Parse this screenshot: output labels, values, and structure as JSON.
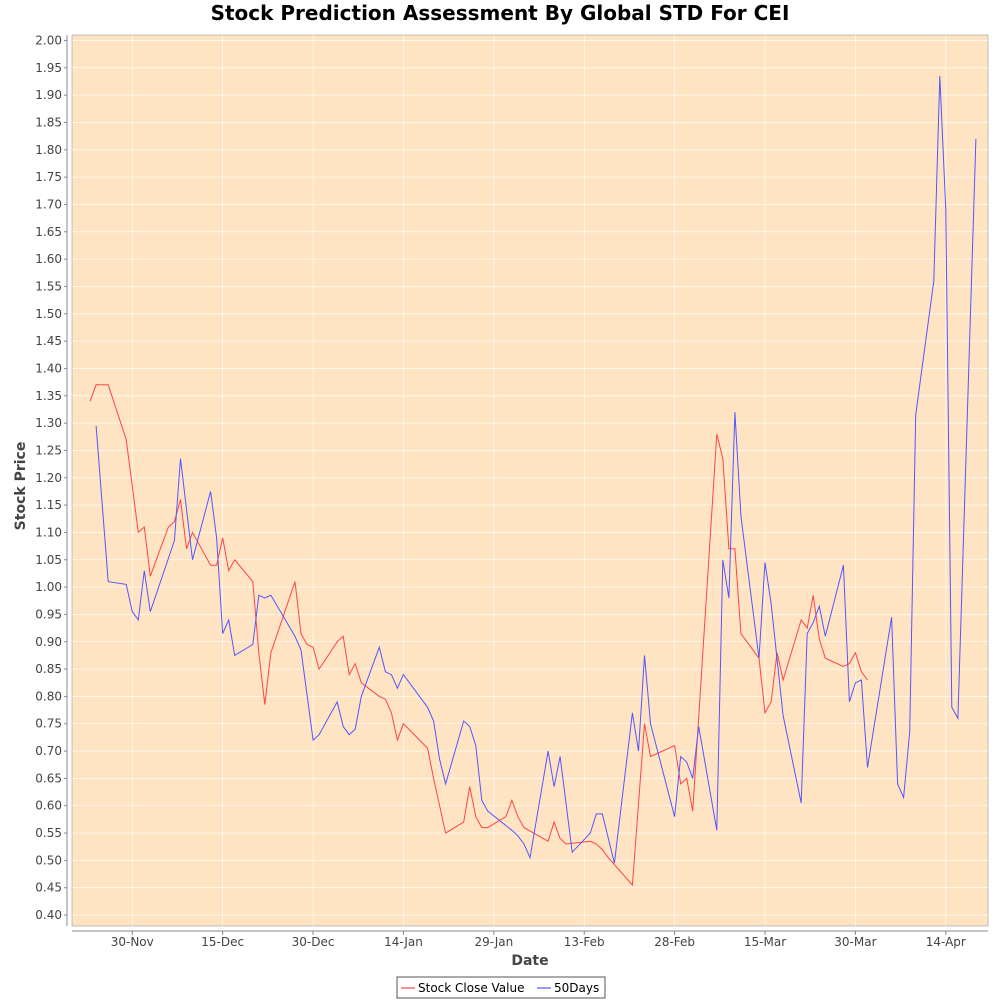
{
  "chart_data": {
    "type": "line",
    "title": "Stock Prediction Assessment By Global STD For CEI",
    "xlabel": "Date",
    "ylabel": "Stock Price",
    "ylim": [
      0.38,
      2.01
    ],
    "yticks": [
      0.4,
      0.45,
      0.5,
      0.55,
      0.6,
      0.65,
      0.7,
      0.75,
      0.8,
      0.85,
      0.9,
      0.95,
      1.0,
      1.05,
      1.1,
      1.15,
      1.2,
      1.25,
      1.3,
      1.35,
      1.4,
      1.45,
      1.5,
      1.55,
      1.6,
      1.65,
      1.7,
      1.75,
      1.8,
      1.85,
      1.9,
      1.95,
      2.0
    ],
    "xticks": [
      {
        "date": "2017-11-30",
        "label": "30-Nov"
      },
      {
        "date": "2017-12-15",
        "label": "15-Dec"
      },
      {
        "date": "2017-12-30",
        "label": "30-Dec"
      },
      {
        "date": "2018-01-14",
        "label": "14-Jan"
      },
      {
        "date": "2018-01-29",
        "label": "29-Jan"
      },
      {
        "date": "2018-02-13",
        "label": "13-Feb"
      },
      {
        "date": "2018-02-28",
        "label": "28-Feb"
      },
      {
        "date": "2018-03-15",
        "label": "15-Mar"
      },
      {
        "date": "2018-03-30",
        "label": "30-Mar"
      },
      {
        "date": "2018-04-14",
        "label": "14-Apr"
      }
    ],
    "xlim": [
      "2017-11-20",
      "2018-04-21"
    ],
    "grid": true,
    "legend": "bottom",
    "colors": {
      "plot_background": "#FFE4C4",
      "frame_background": "#ffffff",
      "stock_close": "#ff4444",
      "fifty_days": "#5555ff"
    },
    "series": [
      {
        "name": "Stock Close Value",
        "color": "#ff4444",
        "points": [
          [
            "2017-11-23",
            1.34
          ],
          [
            "2017-11-24",
            1.37
          ],
          [
            "2017-11-26",
            1.37
          ],
          [
            "2017-11-29",
            1.27
          ],
          [
            "2017-12-01",
            1.1
          ],
          [
            "2017-12-02",
            1.11
          ],
          [
            "2017-12-03",
            1.02
          ],
          [
            "2017-12-06",
            1.11
          ],
          [
            "2017-12-07",
            1.12
          ],
          [
            "2017-12-08",
            1.16
          ],
          [
            "2017-12-09",
            1.07
          ],
          [
            "2017-12-10",
            1.1
          ],
          [
            "2017-12-13",
            1.04
          ],
          [
            "2017-12-14",
            1.04
          ],
          [
            "2017-12-15",
            1.09
          ],
          [
            "2017-12-16",
            1.03
          ],
          [
            "2017-12-17",
            1.05
          ],
          [
            "2017-12-20",
            1.01
          ],
          [
            "2017-12-21",
            0.88
          ],
          [
            "2017-12-22",
            0.785
          ],
          [
            "2017-12-23",
            0.88
          ],
          [
            "2017-12-27",
            1.01
          ],
          [
            "2017-12-28",
            0.915
          ],
          [
            "2017-12-29",
            0.895
          ],
          [
            "2017-12-30",
            0.89
          ],
          [
            "2017-12-31",
            0.85
          ],
          [
            "2018-01-03",
            0.9
          ],
          [
            "2018-01-04",
            0.91
          ],
          [
            "2018-01-05",
            0.84
          ],
          [
            "2018-01-06",
            0.86
          ],
          [
            "2018-01-07",
            0.825
          ],
          [
            "2018-01-10",
            0.8
          ],
          [
            "2018-01-11",
            0.795
          ],
          [
            "2018-01-12",
            0.77
          ],
          [
            "2018-01-13",
            0.72
          ],
          [
            "2018-01-14",
            0.75
          ],
          [
            "2018-01-18",
            0.705
          ],
          [
            "2018-01-19",
            0.65
          ],
          [
            "2018-01-20",
            0.6
          ],
          [
            "2018-01-21",
            0.55
          ],
          [
            "2018-01-24",
            0.57
          ],
          [
            "2018-01-25",
            0.635
          ],
          [
            "2018-01-26",
            0.58
          ],
          [
            "2018-01-27",
            0.56
          ],
          [
            "2018-01-28",
            0.56
          ],
          [
            "2018-01-31",
            0.58
          ],
          [
            "2018-02-01",
            0.61
          ],
          [
            "2018-02-02",
            0.58
          ],
          [
            "2018-02-03",
            0.56
          ],
          [
            "2018-02-07",
            0.535
          ],
          [
            "2018-02-08",
            0.57
          ],
          [
            "2018-02-09",
            0.54
          ],
          [
            "2018-02-10",
            0.53
          ],
          [
            "2018-02-14",
            0.535
          ],
          [
            "2018-02-15",
            0.53
          ],
          [
            "2018-02-16",
            0.52
          ],
          [
            "2018-02-17",
            0.505
          ],
          [
            "2018-02-21",
            0.455
          ],
          [
            "2018-02-23",
            0.75
          ],
          [
            "2018-02-24",
            0.69
          ],
          [
            "2018-02-28",
            0.71
          ],
          [
            "2018-03-01",
            0.64
          ],
          [
            "2018-03-02",
            0.65
          ],
          [
            "2018-03-03",
            0.59
          ],
          [
            "2018-03-07",
            1.28
          ],
          [
            "2018-03-08",
            1.235
          ],
          [
            "2018-03-09",
            1.07
          ],
          [
            "2018-03-10",
            1.07
          ],
          [
            "2018-03-11",
            0.915
          ],
          [
            "2018-03-14",
            0.87
          ],
          [
            "2018-03-15",
            0.77
          ],
          [
            "2018-03-16",
            0.79
          ],
          [
            "2018-03-17",
            0.88
          ],
          [
            "2018-03-18",
            0.83
          ],
          [
            "2018-03-21",
            0.94
          ],
          [
            "2018-03-22",
            0.925
          ],
          [
            "2018-03-23",
            0.985
          ],
          [
            "2018-03-24",
            0.905
          ],
          [
            "2018-03-25",
            0.87
          ],
          [
            "2018-03-28",
            0.855
          ],
          [
            "2018-03-29",
            0.86
          ],
          [
            "2018-03-30",
            0.88
          ],
          [
            "2018-03-31",
            0.845
          ],
          [
            "2018-04-01",
            0.83
          ]
        ]
      },
      {
        "name": "50Days",
        "color": "#5555ff",
        "points": [
          [
            "2017-11-24",
            1.295
          ],
          [
            "2017-11-26",
            1.01
          ],
          [
            "2017-11-29",
            1.005
          ],
          [
            "2017-11-30",
            0.955
          ],
          [
            "2017-12-01",
            0.94
          ],
          [
            "2017-12-02",
            1.03
          ],
          [
            "2017-12-03",
            0.955
          ],
          [
            "2017-12-07",
            1.085
          ],
          [
            "2017-12-08",
            1.235
          ],
          [
            "2017-12-10",
            1.05
          ],
          [
            "2017-12-13",
            1.175
          ],
          [
            "2017-12-14",
            1.09
          ],
          [
            "2017-12-15",
            0.915
          ],
          [
            "2017-12-16",
            0.94
          ],
          [
            "2017-12-17",
            0.875
          ],
          [
            "2017-12-20",
            0.895
          ],
          [
            "2017-12-21",
            0.985
          ],
          [
            "2017-12-22",
            0.98
          ],
          [
            "2017-12-23",
            0.985
          ],
          [
            "2017-12-27",
            0.91
          ],
          [
            "2017-12-28",
            0.885
          ],
          [
            "2017-12-30",
            0.72
          ],
          [
            "2017-12-31",
            0.73
          ],
          [
            "2018-01-03",
            0.79
          ],
          [
            "2018-01-04",
            0.745
          ],
          [
            "2018-01-05",
            0.73
          ],
          [
            "2018-01-06",
            0.74
          ],
          [
            "2018-01-07",
            0.8
          ],
          [
            "2018-01-10",
            0.89
          ],
          [
            "2018-01-11",
            0.845
          ],
          [
            "2018-01-12",
            0.84
          ],
          [
            "2018-01-13",
            0.815
          ],
          [
            "2018-01-14",
            0.84
          ],
          [
            "2018-01-18",
            0.78
          ],
          [
            "2018-01-19",
            0.755
          ],
          [
            "2018-01-20",
            0.685
          ],
          [
            "2018-01-21",
            0.64
          ],
          [
            "2018-01-24",
            0.755
          ],
          [
            "2018-01-25",
            0.745
          ],
          [
            "2018-01-26",
            0.71
          ],
          [
            "2018-01-27",
            0.61
          ],
          [
            "2018-01-28",
            0.59
          ],
          [
            "2018-02-01",
            0.555
          ],
          [
            "2018-02-02",
            0.545
          ],
          [
            "2018-02-03",
            0.53
          ],
          [
            "2018-02-04",
            0.505
          ],
          [
            "2018-02-07",
            0.7
          ],
          [
            "2018-02-08",
            0.635
          ],
          [
            "2018-02-09",
            0.69
          ],
          [
            "2018-02-11",
            0.515
          ],
          [
            "2018-02-14",
            0.55
          ],
          [
            "2018-02-15",
            0.585
          ],
          [
            "2018-02-16",
            0.585
          ],
          [
            "2018-02-18",
            0.495
          ],
          [
            "2018-02-21",
            0.77
          ],
          [
            "2018-02-22",
            0.7
          ],
          [
            "2018-02-23",
            0.875
          ],
          [
            "2018-02-24",
            0.75
          ],
          [
            "2018-02-28",
            0.58
          ],
          [
            "2018-03-01",
            0.69
          ],
          [
            "2018-03-02",
            0.68
          ],
          [
            "2018-03-03",
            0.65
          ],
          [
            "2018-03-04",
            0.745
          ],
          [
            "2018-03-07",
            0.555
          ],
          [
            "2018-03-08",
            1.05
          ],
          [
            "2018-03-09",
            0.98
          ],
          [
            "2018-03-10",
            1.32
          ],
          [
            "2018-03-11",
            1.13
          ],
          [
            "2018-03-14",
            0.87
          ],
          [
            "2018-03-15",
            1.045
          ],
          [
            "2018-03-16",
            0.97
          ],
          [
            "2018-03-18",
            0.765
          ],
          [
            "2018-03-21",
            0.605
          ],
          [
            "2018-03-22",
            0.915
          ],
          [
            "2018-03-23",
            0.935
          ],
          [
            "2018-03-24",
            0.965
          ],
          [
            "2018-03-25",
            0.91
          ],
          [
            "2018-03-28",
            1.04
          ],
          [
            "2018-03-29",
            0.79
          ],
          [
            "2018-03-30",
            0.825
          ],
          [
            "2018-03-31",
            0.83
          ],
          [
            "2018-04-01",
            0.67
          ],
          [
            "2018-04-05",
            0.945
          ],
          [
            "2018-04-06",
            0.64
          ],
          [
            "2018-04-07",
            0.615
          ],
          [
            "2018-04-08",
            0.735
          ],
          [
            "2018-04-09",
            1.315
          ],
          [
            "2018-04-12",
            1.56
          ],
          [
            "2018-04-13",
            1.935
          ],
          [
            "2018-04-14",
            1.69
          ],
          [
            "2018-04-15",
            0.78
          ],
          [
            "2018-04-16",
            0.76
          ],
          [
            "2018-04-19",
            1.82
          ]
        ]
      }
    ]
  }
}
